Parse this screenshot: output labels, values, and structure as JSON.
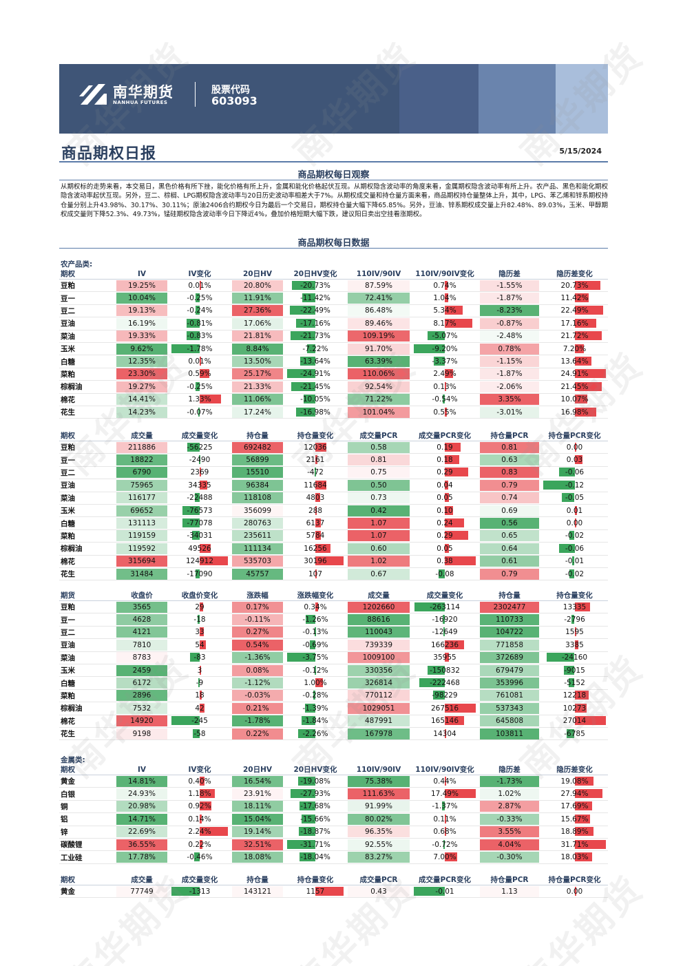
{
  "header": {
    "logo_cn": "南华期货",
    "logo_en": "NANHUA FUTURES",
    "stock_label": "股票代码",
    "stock_code": "603093"
  },
  "title": {
    "main": "商品期权日报",
    "date": "5/15/2024"
  },
  "sections": {
    "observe": "商品期权每日观察",
    "data": "商品期权每日数据"
  },
  "summary": "从期权标的走势来看，本交易日，黑色价格有所下挫，能化价格有所上升，金属和能化价格起伏互现。从期权隐含波动率的角度来看，金属期权隐含波动率有所上升。农产品、黑色和能化期权隐含波动率起伏互现。另外，豆二、棕榈、LPG期权隐含波动率与20日历史波动率相差大于7%。从期权成交量和持仓量方面来看，商品期权持仓量整体上升，其中，LPG、苯乙烯和锌系期权持仓量分别上升43.98%、30.17%、30.11%；原油2406合约期权今日为最后一个交易日，期权持仓量大幅下降65.85%。另外，豆油、锌系期权成交量上升82.48%、89.03%，玉米、甲醇期权成交量则下降52.3%、49.73%，锰硅期权隐含波动率今日下降近4%，叠加价格短期大幅下跌，建议阳日卖出空挂看涨期权。",
  "watermark": "南华期货",
  "colors": {
    "red": "#e8474c",
    "green": "#3ba55c"
  },
  "groups": {
    "agri": "农产品类:",
    "metal": "金属类:"
  },
  "t_iv_agri": {
    "headers": [
      "期权",
      "IV",
      "IV变化",
      "20日HV",
      "20日HV变化",
      "110IV/90IV",
      "110IV/90IV变化",
      "隐历差",
      "隐历差变化"
    ],
    "rows": [
      [
        "豆粕",
        "19.25%",
        "0.01%",
        "20.80%",
        "-20.73%",
        "87.59%",
        "0.74%",
        "-1.55%",
        "20.73%"
      ],
      [
        "豆一",
        "10.04%",
        "-0.25%",
        "11.91%",
        "-11.42%",
        "72.41%",
        "1.04%",
        "-1.87%",
        "11.42%"
      ],
      [
        "豆二",
        "19.13%",
        "-0.24%",
        "27.36%",
        "-22.49%",
        "86.48%",
        "5.34%",
        "-8.23%",
        "22.49%"
      ],
      [
        "豆油",
        "16.19%",
        "-0.81%",
        "17.06%",
        "-17.16%",
        "89.46%",
        "8.17%",
        "-0.87%",
        "17.16%"
      ],
      [
        "菜油",
        "19.33%",
        "-0.83%",
        "21.81%",
        "-21.73%",
        "109.19%",
        "-5.07%",
        "-2.48%",
        "21.72%"
      ],
      [
        "玉米",
        "9.62%",
        "-1.78%",
        "8.84%",
        "-7.22%",
        "91.70%",
        "-9.20%",
        "0.78%",
        "7.20%"
      ],
      [
        "白糖",
        "12.35%",
        "0.01%",
        "13.50%",
        "-13.64%",
        "63.39%",
        "-3.37%",
        "-1.15%",
        "13.64%"
      ],
      [
        "菜粕",
        "23.30%",
        "0.59%",
        "25.17%",
        "-24.91%",
        "110.06%",
        "2.49%",
        "-1.87%",
        "24.91%"
      ],
      [
        "棕榈油",
        "19.27%",
        "-0.25%",
        "21.33%",
        "-21.45%",
        "92.54%",
        "0.13%",
        "-2.06%",
        "21.45%"
      ],
      [
        "棉花",
        "14.41%",
        "1.33%",
        "11.06%",
        "-10.05%",
        "71.22%",
        "-0.54%",
        "3.35%",
        "10.07%"
      ],
      [
        "花生",
        "14.23%",
        "-0.07%",
        "17.24%",
        "-16.98%",
        "101.04%",
        "0.55%",
        "-3.01%",
        "16.98%"
      ]
    ]
  },
  "t_vol_agri": {
    "headers": [
      "期权",
      "成交量",
      "成交量变化",
      "持仓量",
      "持仓量变化",
      "成交量PCR",
      "成交量PCR变化",
      "持仓量PCR",
      "持仓量PCR变化"
    ],
    "rows": [
      [
        "豆粕",
        "211886",
        "-56225",
        "692482",
        "12036",
        "0.58",
        "0.19",
        "0.81",
        "0.00"
      ],
      [
        "豆一",
        "18822",
        "-2490",
        "56899",
        "2161",
        "0.81",
        "0.18",
        "0.63",
        "0.03"
      ],
      [
        "豆二",
        "6790",
        "2369",
        "15510",
        "-472",
        "0.75",
        "0.29",
        "0.83",
        "-0.06"
      ],
      [
        "豆油",
        "75965",
        "34335",
        "96384",
        "11684",
        "0.50",
        "0.04",
        "0.79",
        "-0.12"
      ],
      [
        "菜油",
        "116177",
        "-22488",
        "118108",
        "4803",
        "0.73",
        "0.05",
        "0.74",
        "-0.05"
      ],
      [
        "玉米",
        "69652",
        "-76573",
        "356099",
        "288",
        "0.42",
        "0.10",
        "0.69",
        "0.01"
      ],
      [
        "白糖",
        "131113",
        "-77078",
        "280763",
        "6137",
        "1.07",
        "0.24",
        "0.56",
        "0.00"
      ],
      [
        "菜粕",
        "119159",
        "-34031",
        "235611",
        "5784",
        "1.07",
        "0.29",
        "0.65",
        "-0.02"
      ],
      [
        "棕榈油",
        "119592",
        "49526",
        "111134",
        "16256",
        "0.60",
        "0.05",
        "0.64",
        "-0.06"
      ],
      [
        "棉花",
        "315694",
        "124912",
        "535703",
        "30196",
        "1.02",
        "0.38",
        "0.61",
        "-0.01"
      ],
      [
        "花生",
        "31484",
        "-17090",
        "45757",
        "107",
        "0.67",
        "-0.08",
        "0.79",
        "-0.02"
      ]
    ]
  },
  "t_fut_agri": {
    "headers": [
      "期货",
      "收盘价",
      "收盘价变化",
      "涨跌幅",
      "涨跌幅变化",
      "成交量",
      "成交量变化",
      "持仓量",
      "持仓量变化"
    ],
    "rows": [
      [
        "豆粕",
        "3565",
        "29",
        "0.17%",
        "0.34%",
        "1202660",
        "-263114",
        "2302477",
        "13335"
      ],
      [
        "豆一",
        "4628",
        "-18",
        "-0.11%",
        "-1.26%",
        "88616",
        "-16920",
        "110733",
        "-2796"
      ],
      [
        "豆二",
        "4121",
        "33",
        "0.27%",
        "-0.13%",
        "110043",
        "-12649",
        "104722",
        "1595"
      ],
      [
        "豆油",
        "7810",
        "54",
        "0.54%",
        "-0.69%",
        "739339",
        "166236",
        "771858",
        "3385"
      ],
      [
        "菜油",
        "8783",
        "-83",
        "-1.36%",
        "-3.75%",
        "1009100",
        "35955",
        "372689",
        "-24160"
      ],
      [
        "玉米",
        "2459",
        "3",
        "0.08%",
        "-0.12%",
        "330356",
        "-150832",
        "679479",
        "-9015"
      ],
      [
        "白糖",
        "6172",
        "-9",
        "-1.12%",
        "1.00%",
        "326814",
        "-222468",
        "353996",
        "-5152"
      ],
      [
        "菜粕",
        "2896",
        "18",
        "-0.03%",
        "-0.28%",
        "770112",
        "-98229",
        "761081",
        "12218"
      ],
      [
        "棕榈油",
        "7532",
        "42",
        "0.21%",
        "-1.39%",
        "1029051",
        "267516",
        "537343",
        "10273"
      ],
      [
        "棉花",
        "14920",
        "-245",
        "-1.78%",
        "-1.84%",
        "487991",
        "165146",
        "645808",
        "27014"
      ],
      [
        "花生",
        "9198",
        "-58",
        "0.22%",
        "-2.26%",
        "167978",
        "14304",
        "103811",
        "-6785"
      ]
    ]
  },
  "t_iv_metal": {
    "headers": [
      "期权",
      "IV",
      "IV变化",
      "20日HV",
      "20日HV变化",
      "110IV/90IV",
      "110IV/90IV变化",
      "隐历差",
      "隐历差变化"
    ],
    "rows": [
      [
        "黄金",
        "14.81%",
        "0.40%",
        "16.54%",
        "-19.08%",
        "75.38%",
        "0.44%",
        "-1.73%",
        "19.08%"
      ],
      [
        "白银",
        "24.93%",
        "1.18%",
        "23.91%",
        "-27.93%",
        "111.63%",
        "17.49%",
        "1.02%",
        "27.94%"
      ],
      [
        "铜",
        "20.98%",
        "0.92%",
        "18.11%",
        "-17.68%",
        "91.99%",
        "-1.37%",
        "2.87%",
        "17.69%"
      ],
      [
        "铝",
        "14.71%",
        "0.14%",
        "15.04%",
        "-15.66%",
        "80.02%",
        "0.11%",
        "-0.33%",
        "15.67%"
      ],
      [
        "锌",
        "22.69%",
        "2.24%",
        "19.14%",
        "-18.87%",
        "96.35%",
        "0.68%",
        "3.55%",
        "18.89%"
      ],
      [
        "碳酸锂",
        "36.55%",
        "0.22%",
        "32.51%",
        "-31.71%",
        "92.55%",
        "-0.72%",
        "4.04%",
        "31.71%"
      ],
      [
        "工业硅",
        "17.78%",
        "-0.46%",
        "18.08%",
        "-18.04%",
        "83.27%",
        "7.00%",
        "-0.30%",
        "18.03%"
      ]
    ]
  },
  "t_vol_metal": {
    "headers": [
      "期权",
      "成交量",
      "成交量变化",
      "持仓量",
      "持仓量变化",
      "成交量PCR",
      "成交量PCR变化",
      "持仓量PCR",
      "持仓量PCR变化"
    ],
    "rows": [
      [
        "黄金",
        "77749",
        "-1313",
        "143121",
        "1157",
        "0.43",
        "-0.01",
        "1.13",
        "0.00"
      ]
    ]
  }
}
